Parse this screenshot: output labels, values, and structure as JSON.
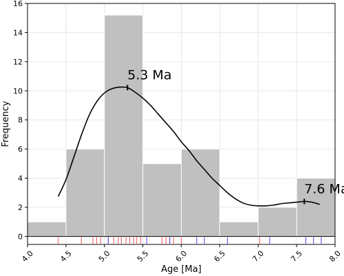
{
  "chart_data": {
    "type": "bar",
    "xlabel": "Age [Ma]",
    "ylabel": "Frequency",
    "xlim": [
      4.0,
      8.0
    ],
    "ylim": [
      -0.55,
      16
    ],
    "grid": true,
    "x_ticks": [
      "4.0",
      "4.5",
      "5.0",
      "5.5",
      "6.0",
      "6.5",
      "7.0",
      "7.5",
      "8.0"
    ],
    "y_ticks": [
      "0",
      "2",
      "4",
      "6",
      "8",
      "10",
      "12",
      "14",
      "16"
    ],
    "histogram": {
      "bin_edges": [
        4.0,
        4.5,
        5.0,
        5.5,
        6.0,
        6.5,
        7.0,
        7.5,
        8.0
      ],
      "counts": [
        1,
        6,
        15.2,
        5,
        6,
        1,
        2,
        4
      ],
      "color": "#c0c0c0"
    },
    "density_curve": {
      "x": [
        4.4,
        4.5,
        4.6,
        4.7,
        4.8,
        4.9,
        5.0,
        5.1,
        5.2,
        5.3,
        5.4,
        5.5,
        5.6,
        5.7,
        5.8,
        5.9,
        6.0,
        6.1,
        6.2,
        6.3,
        6.4,
        6.5,
        6.6,
        6.7,
        6.8,
        6.9,
        7.0,
        7.1,
        7.2,
        7.3,
        7.4,
        7.5,
        7.6,
        7.7,
        7.8
      ],
      "y": [
        2.75,
        3.9,
        5.4,
        6.95,
        8.3,
        9.25,
        9.85,
        10.15,
        10.25,
        10.22,
        9.9,
        9.5,
        9.0,
        8.4,
        7.8,
        7.2,
        6.5,
        5.9,
        5.2,
        4.6,
        4.0,
        3.5,
        3.0,
        2.6,
        2.3,
        2.15,
        2.1,
        2.1,
        2.15,
        2.25,
        2.3,
        2.35,
        2.4,
        2.35,
        2.2
      ],
      "color": "#000000"
    },
    "peaks": [
      {
        "x": 5.3,
        "y": 10.22,
        "label": "5.3 Ma"
      },
      {
        "x": 7.6,
        "y": 2.4,
        "label": "7.6 Ma"
      }
    ],
    "rug": {
      "red": [
        4.4,
        4.7,
        4.85,
        4.9,
        4.95,
        5.05,
        5.12,
        5.18,
        5.22,
        5.28,
        5.33,
        5.38,
        5.42,
        5.47,
        5.75,
        5.8,
        5.85,
        5.9,
        6.0,
        7.02
      ],
      "blue": [
        5.05,
        5.55,
        5.85,
        6.2,
        6.3,
        6.6,
        7.15,
        7.62,
        7.72,
        7.82
      ],
      "colors": {
        "red": "#ff5555",
        "blue": "#4444ff"
      }
    }
  }
}
